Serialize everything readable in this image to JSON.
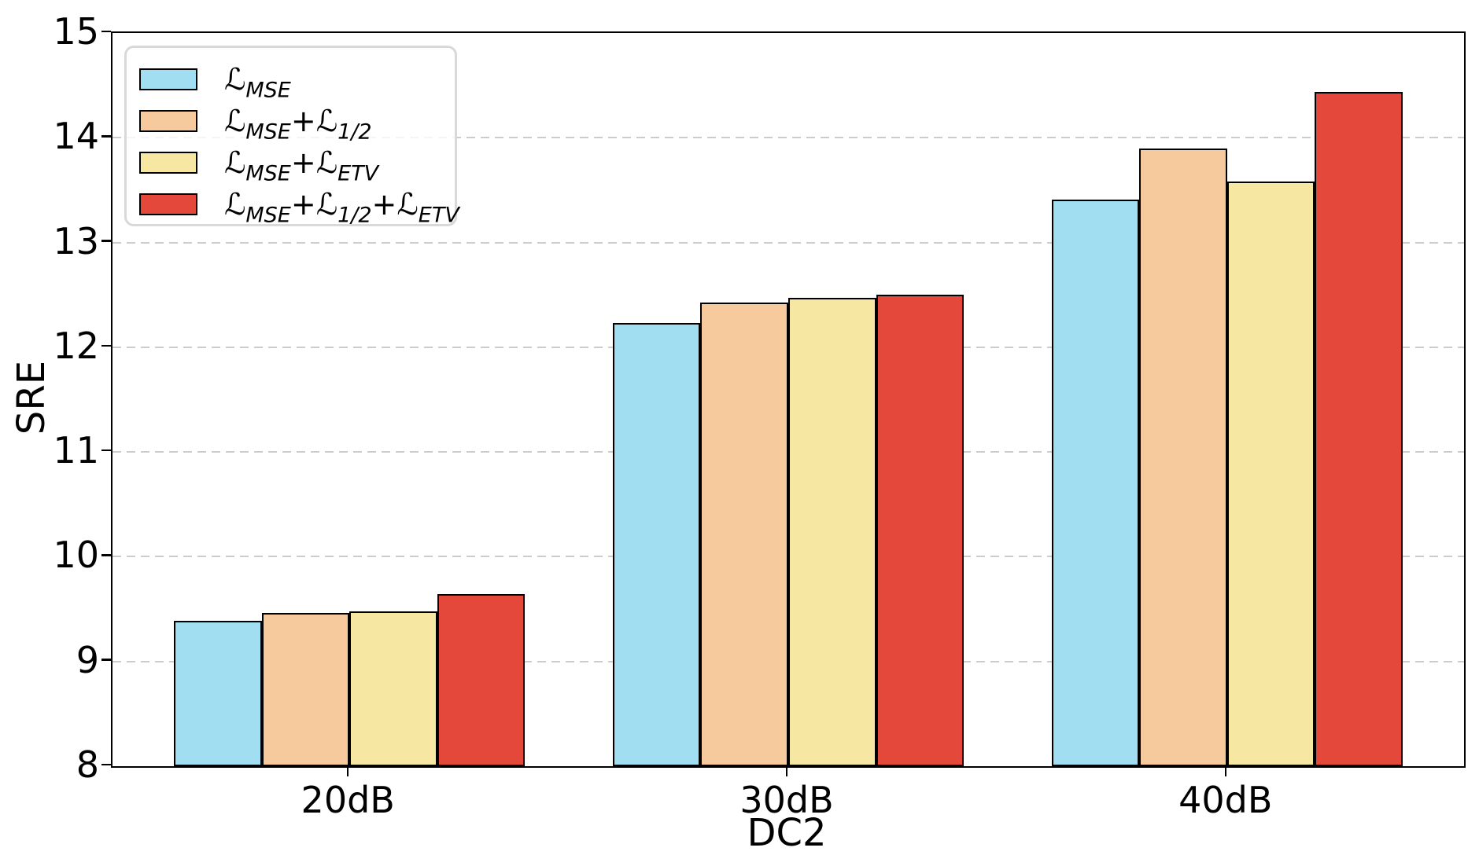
{
  "chart_data": {
    "type": "bar",
    "title": "",
    "xlabel": "DC2",
    "ylabel": "SRE",
    "categories": [
      "20dB",
      "30dB",
      "40dB"
    ],
    "series": [
      {
        "name": "ℒ_MSE",
        "label_parts": [
          [
            "ℒ",
            "MSE"
          ]
        ],
        "color": "#a1def1",
        "values": [
          9.39,
          12.23,
          13.41
        ]
      },
      {
        "name": "ℒ_MSE+ℒ_1/2",
        "label_parts": [
          [
            "ℒ",
            "MSE"
          ],
          [
            "+ℒ",
            "1/2"
          ]
        ],
        "color": "#f6ca9c",
        "values": [
          9.46,
          12.43,
          13.9
        ]
      },
      {
        "name": "ℒ_MSE+ℒ_ETV",
        "label_parts": [
          [
            "ℒ",
            "MSE"
          ],
          [
            "+ℒ",
            "ETV"
          ]
        ],
        "color": "#f6e7a3",
        "values": [
          9.48,
          12.47,
          13.58
        ]
      },
      {
        "name": "ℒ_MSE+ℒ_1/2+ℒ_ETV",
        "label_parts": [
          [
            "ℒ",
            "MSE"
          ],
          [
            "+ℒ",
            "1/2"
          ],
          [
            "+ℒ",
            "ETV"
          ]
        ],
        "color": "#e3483b",
        "values": [
          9.64,
          12.5,
          14.44
        ]
      }
    ],
    "ylim": [
      8,
      15
    ],
    "yticks": [
      8,
      9,
      10,
      11,
      12,
      13,
      14,
      15
    ],
    "ytick_labels": [
      "8",
      "9",
      "10",
      "11",
      "12",
      "13",
      "14",
      "15"
    ],
    "xtick_labels": [
      "20dB",
      "30dB",
      "40dB"
    ],
    "bar_width_data": 0.2,
    "grid": "horizontal-dashed",
    "grid_color": "#cccccc",
    "bar_edge_color": "#000000",
    "legend_position": "upper-left",
    "legend_border_color": "#d9d9d9",
    "background_color": "#ffffff"
  }
}
